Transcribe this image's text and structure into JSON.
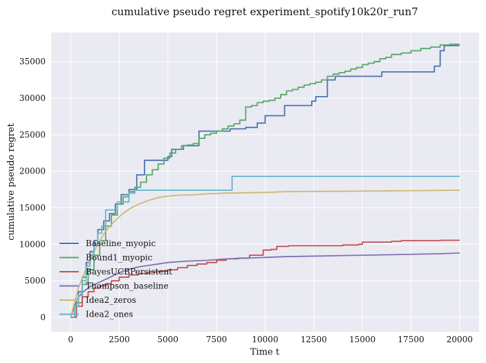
{
  "chart_data": {
    "type": "line",
    "title": "cumulative pseudo regret experiment_spotify10k20r_run7",
    "xlabel": "Time t",
    "ylabel": "cumulative pseudo regret",
    "xlim": [
      -1000,
      21000
    ],
    "ylim": [
      -2000,
      39000
    ],
    "xticks": [
      0,
      2500,
      5000,
      7500,
      10000,
      12500,
      15000,
      17500,
      20000
    ],
    "yticks": [
      0,
      5000,
      10000,
      15000,
      20000,
      25000,
      30000,
      35000
    ],
    "grid": true,
    "legend_position": "lower-left",
    "series": [
      {
        "name": "Baseline_myopic",
        "color": "#4c72b0",
        "step": true,
        "x": [
          0,
          200,
          400,
          600,
          800,
          1000,
          1200,
          1400,
          1700,
          2000,
          2300,
          2600,
          3000,
          3400,
          3800,
          4200,
          5000,
          5200,
          5800,
          6600,
          7600,
          8200,
          9000,
          9600,
          10000,
          11000,
          11800,
          12400,
          12600,
          13000,
          13200,
          13600,
          15800,
          16000,
          18000,
          18700,
          18900,
          19000,
          19200,
          20000
        ],
        "values": [
          0,
          1500,
          3500,
          5500,
          7500,
          9000,
          10500,
          12000,
          13200,
          14200,
          15500,
          16800,
          17500,
          19500,
          21500,
          21500,
          22000,
          23000,
          23500,
          25500,
          25500,
          25800,
          26000,
          26600,
          27600,
          29000,
          29000,
          29600,
          30200,
          30200,
          32500,
          33000,
          33000,
          33600,
          33600,
          34400,
          34400,
          36500,
          37200,
          37200
        ]
      },
      {
        "name": "Bound1_myopic",
        "color": "#55a868",
        "step": true,
        "x": [
          0,
          300,
          600,
          900,
          1200,
          1500,
          1800,
          2100,
          2400,
          2700,
          3000,
          3300,
          3600,
          3900,
          4200,
          4500,
          4800,
          5100,
          5400,
          5700,
          6000,
          6300,
          6600,
          6900,
          7200,
          7500,
          7800,
          8100,
          8400,
          8700,
          9000,
          9300,
          9600,
          9900,
          10200,
          10500,
          10800,
          11100,
          11400,
          11700,
          12000,
          12300,
          12600,
          12900,
          13200,
          13500,
          13800,
          14100,
          14400,
          14700,
          15000,
          15300,
          15600,
          15900,
          16200,
          16500,
          17000,
          17500,
          18000,
          18500,
          19000,
          19500,
          20000
        ],
        "values": [
          0,
          2000,
          4500,
          6500,
          8500,
          10500,
          12500,
          14000,
          15500,
          16500,
          17200,
          17800,
          18500,
          19500,
          20200,
          21000,
          21800,
          22500,
          23000,
          23500,
          23600,
          23800,
          24500,
          25000,
          25200,
          25500,
          25800,
          26200,
          26500,
          27000,
          28800,
          29000,
          29400,
          29600,
          29700,
          30000,
          30500,
          31000,
          31200,
          31500,
          31800,
          32000,
          32200,
          32500,
          33000,
          33300,
          33500,
          33700,
          34000,
          34200,
          34600,
          34800,
          35000,
          35400,
          35600,
          36000,
          36200,
          36500,
          36800,
          37000,
          37300,
          37400,
          37400
        ]
      },
      {
        "name": "BayesUCBPersistent",
        "color": "#c44e52",
        "step": true,
        "x": [
          0,
          300,
          600,
          900,
          1200,
          1500,
          1800,
          2100,
          2500,
          3000,
          3500,
          4000,
          4500,
          5000,
          5500,
          6000,
          6500,
          7000,
          7500,
          8000,
          8600,
          9200,
          9900,
          10300,
          10600,
          11200,
          12000,
          13000,
          14000,
          14800,
          15000,
          15500,
          16000,
          16500,
          17000,
          18000,
          19000,
          20000
        ],
        "values": [
          0,
          1500,
          2800,
          3500,
          4000,
          4300,
          4600,
          5000,
          5500,
          5800,
          6000,
          6200,
          6300,
          6500,
          6800,
          7100,
          7300,
          7500,
          7800,
          8000,
          8100,
          8500,
          9200,
          9300,
          9700,
          9800,
          9800,
          9800,
          9900,
          10000,
          10300,
          10300,
          10300,
          10400,
          10500,
          10500,
          10550,
          10550
        ]
      },
      {
        "name": "Thompson_baseline",
        "color": "#8172b2",
        "step": false,
        "x": [
          0,
          200,
          400,
          700,
          1000,
          1400,
          1800,
          2200,
          2600,
          3000,
          3500,
          4000,
          4500,
          5000,
          5500,
          6000,
          7000,
          8000,
          9000,
          10000,
          11000,
          12000,
          13000,
          14000,
          15000,
          16000,
          17000,
          18000,
          19000,
          20000
        ],
        "values": [
          0,
          1500,
          2800,
          3600,
          4200,
          4700,
          5200,
          5700,
          6200,
          6600,
          6900,
          7100,
          7300,
          7500,
          7600,
          7700,
          7800,
          8000,
          8100,
          8200,
          8300,
          8350,
          8400,
          8450,
          8500,
          8550,
          8600,
          8650,
          8700,
          8800
        ]
      },
      {
        "name": "Idea2_zeros",
        "color": "#ccb974",
        "step": false,
        "x": [
          0,
          200,
          400,
          700,
          1000,
          1400,
          1800,
          2200,
          2600,
          3000,
          3500,
          4000,
          4500,
          5000,
          5500,
          6000,
          6500,
          7000,
          8000,
          9000,
          10000,
          10500,
          11000,
          12000,
          13000,
          14000,
          15000,
          16000,
          17000,
          18000,
          19000,
          20000
        ],
        "values": [
          0,
          2000,
          4000,
          6000,
          8000,
          10000,
          11800,
          13000,
          14000,
          14800,
          15500,
          16000,
          16400,
          16600,
          16700,
          16750,
          16800,
          16900,
          17000,
          17050,
          17100,
          17150,
          17200,
          17220,
          17250,
          17250,
          17280,
          17300,
          17330,
          17350,
          17380,
          17400
        ]
      },
      {
        "name": "Idea2_ones",
        "color": "#64b5cd",
        "step": true,
        "x": [
          0,
          200,
          400,
          600,
          800,
          1000,
          1200,
          1400,
          1600,
          1800,
          2200,
          2400,
          2800,
          3000,
          3300,
          4000,
          5000,
          6000,
          7000,
          8000,
          8200,
          8300,
          10000,
          15000,
          20000
        ],
        "values": [
          0,
          1500,
          3000,
          5000,
          7000,
          8500,
          10000,
          11500,
          12500,
          14700,
          14700,
          15800,
          15800,
          17000,
          17400,
          17400,
          17400,
          17400,
          17400,
          17400,
          17400,
          19300,
          19300,
          19300,
          19300
        ]
      }
    ]
  }
}
